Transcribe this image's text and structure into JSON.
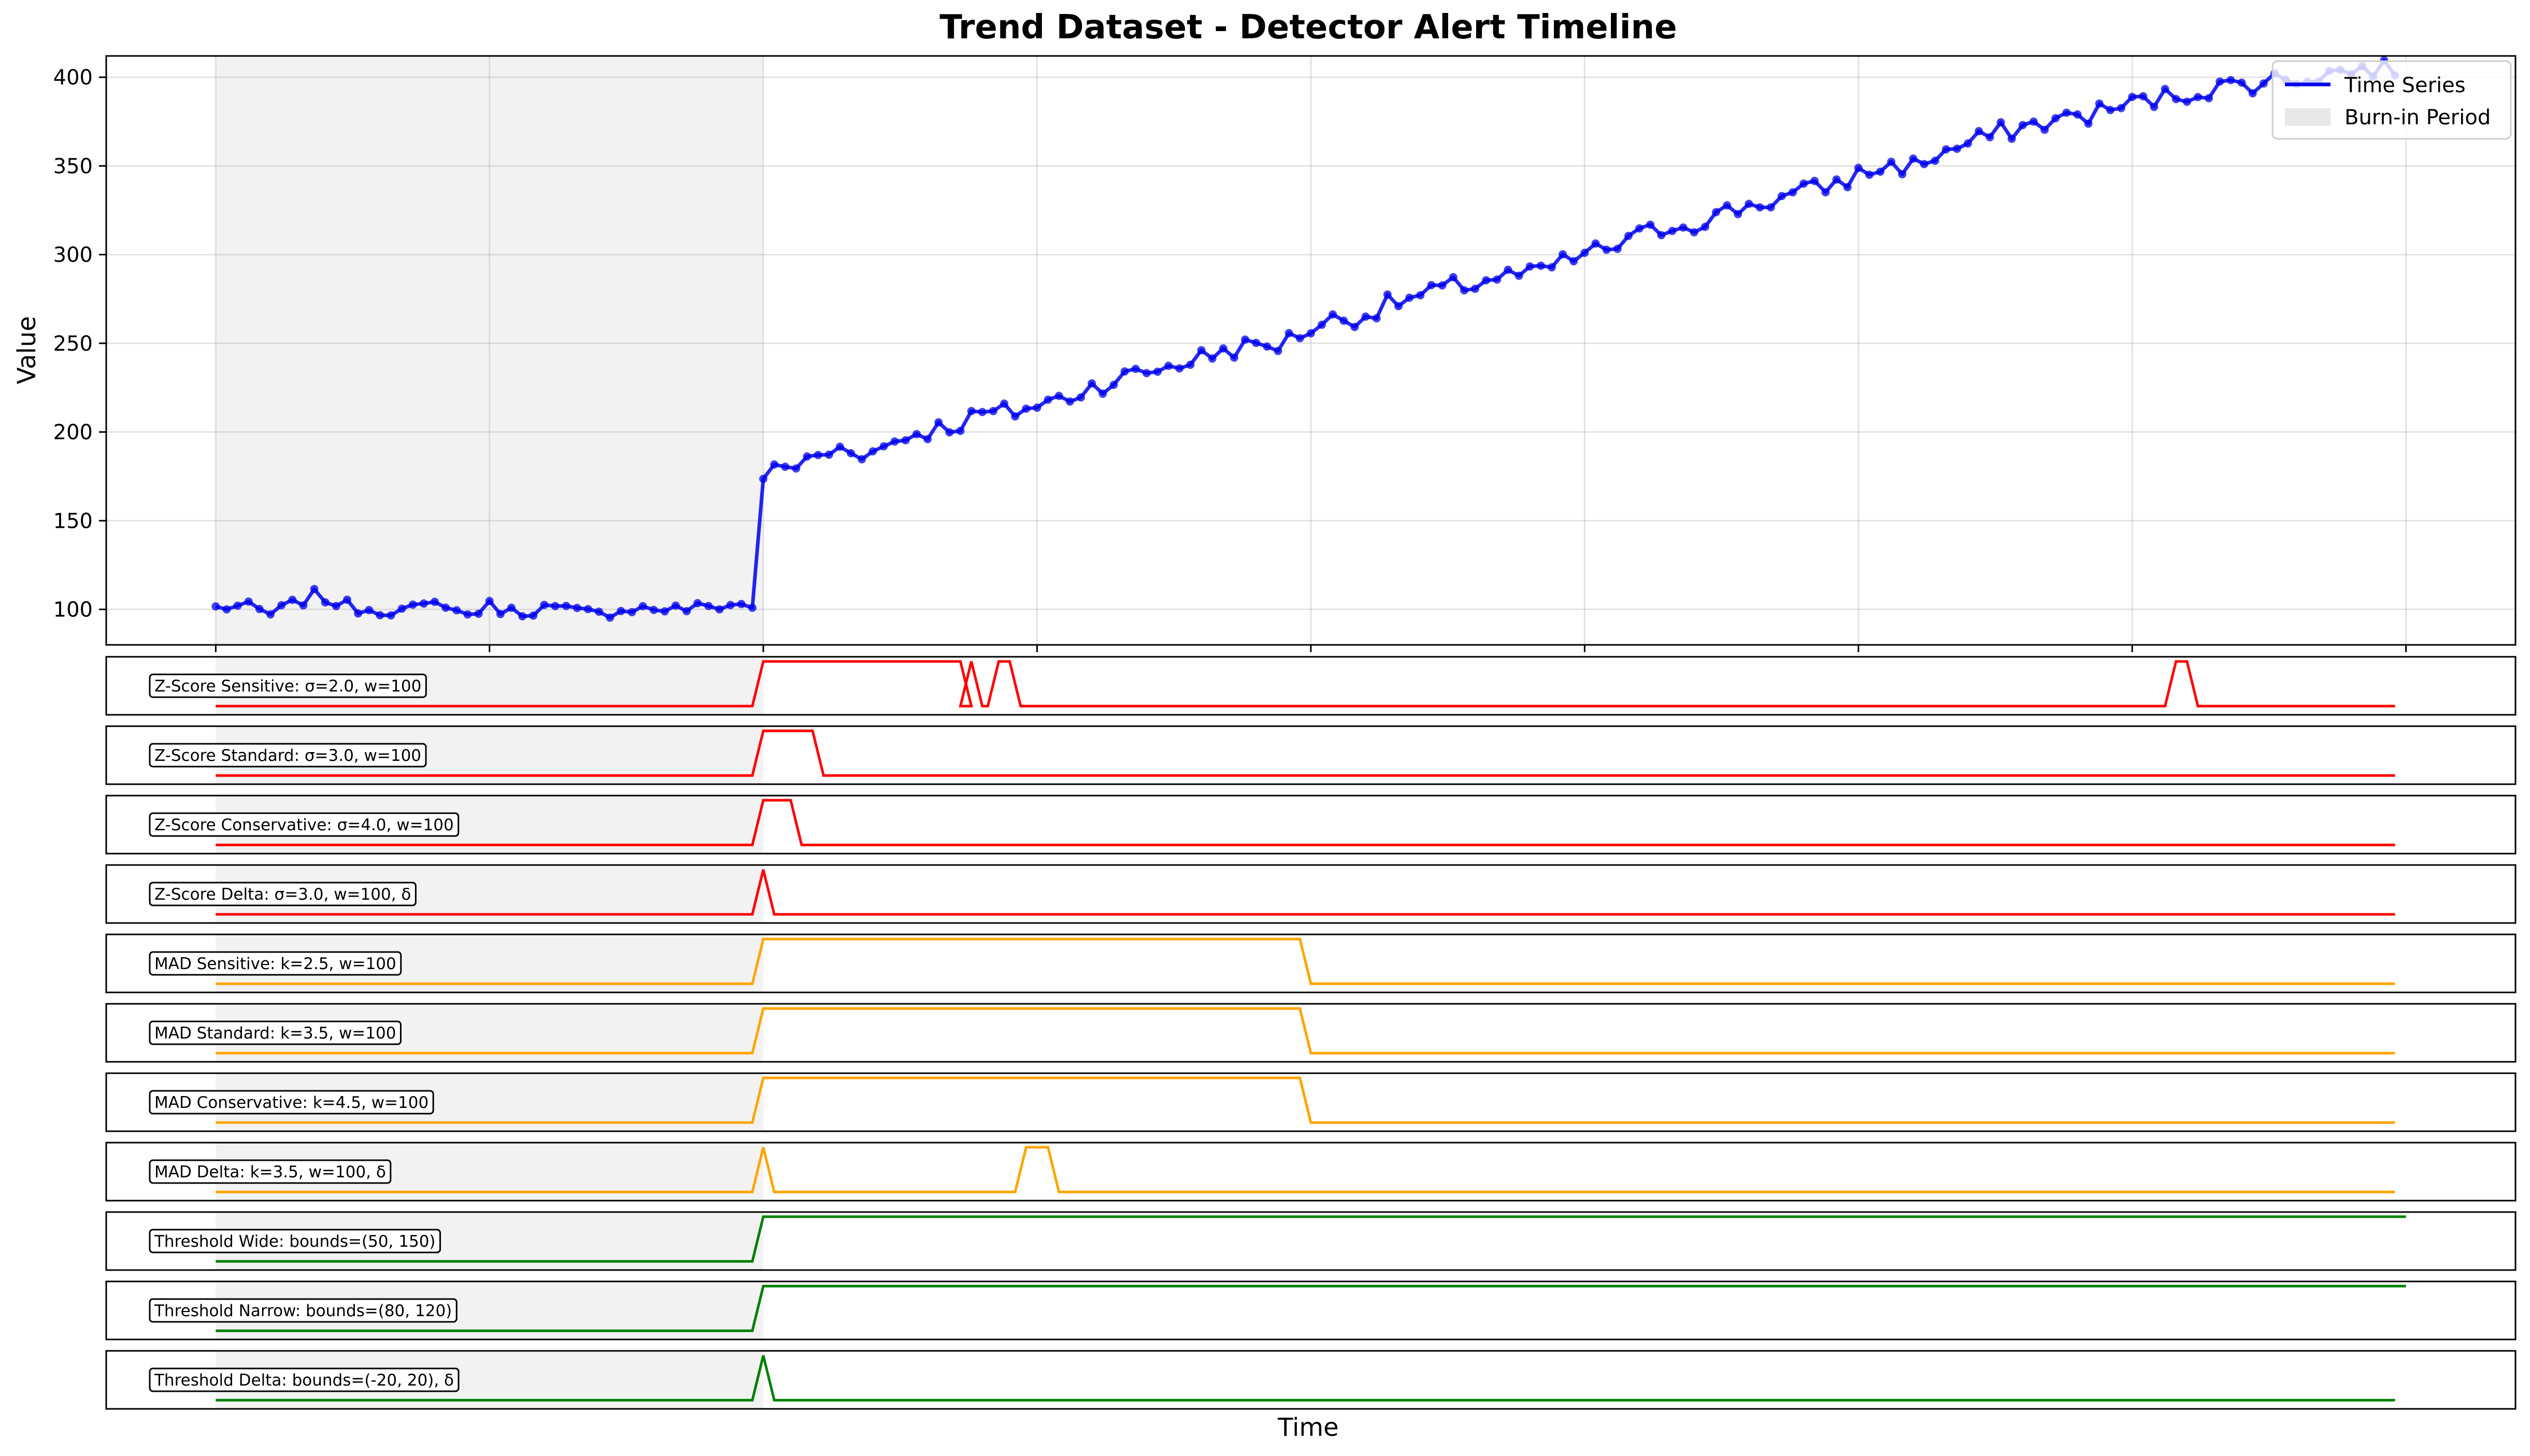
{
  "chart_data": {
    "type": "line",
    "title": "Trend Dataset - Detector Alert Timeline",
    "xlabel": "Time",
    "ylabel": "Value",
    "xlim": [
      -20,
      420
    ],
    "ylim": [
      80,
      412
    ],
    "yticks": [
      100,
      150,
      200,
      250,
      300,
      350,
      400
    ],
    "xgrid": [
      0,
      50,
      100,
      150,
      200,
      250,
      300,
      350,
      400
    ],
    "grid": true,
    "legend_position": "top-right",
    "legend": [
      "Time Series",
      "Burn-in Period"
    ],
    "burn_in": {
      "label": "Burn-in Period",
      "start": 0,
      "end": 100
    },
    "time_series": {
      "name": "Time Series",
      "color": "#0000ee",
      "anchors": [
        [
          0,
          101
        ],
        [
          5,
          102
        ],
        [
          10,
          97
        ],
        [
          18,
          108
        ],
        [
          25,
          101
        ],
        [
          35,
          99
        ],
        [
          42,
          104
        ],
        [
          45,
          96
        ],
        [
          50,
          102
        ],
        [
          55,
          98
        ],
        [
          60,
          101
        ],
        [
          70,
          97
        ],
        [
          75,
          101
        ],
        [
          85,
          100
        ],
        [
          95,
          103
        ],
        [
          99,
          101
        ],
        [
          100,
          176
        ],
        [
          105,
          180
        ],
        [
          110,
          186
        ],
        [
          115,
          192
        ],
        [
          120,
          188
        ],
        [
          125,
          197
        ],
        [
          130,
          201
        ],
        [
          135,
          204
        ],
        [
          140,
          210
        ],
        [
          145,
          211
        ],
        [
          150,
          215
        ],
        [
          155,
          219
        ],
        [
          160,
          226
        ],
        [
          165,
          230
        ],
        [
          170,
          234
        ],
        [
          175,
          238
        ],
        [
          180,
          242
        ],
        [
          185,
          247
        ],
        [
          190,
          248
        ],
        [
          195,
          250
        ],
        [
          200,
          259
        ],
        [
          205,
          264
        ],
        [
          210,
          266
        ],
        [
          215,
          273
        ],
        [
          220,
          276
        ],
        [
          225,
          281
        ],
        [
          230,
          284
        ],
        [
          235,
          288
        ],
        [
          240,
          288
        ],
        [
          245,
          294
        ],
        [
          250,
          300
        ],
        [
          255,
          304
        ],
        [
          260,
          310
        ],
        [
          265,
          316
        ],
        [
          270,
          318
        ],
        [
          275,
          323
        ],
        [
          280,
          328
        ],
        [
          285,
          331
        ],
        [
          290,
          335
        ],
        [
          295,
          339
        ],
        [
          300,
          345
        ],
        [
          305,
          350
        ],
        [
          310,
          350
        ],
        [
          315,
          357
        ],
        [
          320,
          362
        ],
        [
          325,
          368
        ],
        [
          330,
          372
        ],
        [
          335,
          375
        ],
        [
          340,
          378
        ],
        [
          345,
          381
        ],
        [
          350,
          385
        ],
        [
          355,
          388
        ],
        [
          360,
          391
        ],
        [
          365,
          394
        ],
        [
          370,
          396
        ],
        [
          375,
          398
        ],
        [
          380,
          400
        ],
        [
          385,
          402
        ],
        [
          390,
          404
        ],
        [
          395,
          405
        ],
        [
          399,
          406
        ]
      ]
    },
    "detectors": [
      {
        "name": "Z-Score Sensitive: σ=2.0, w=100",
        "color": "#ff0000",
        "alerts": [
          [
            100,
            136
          ],
          [
            138,
            139
          ],
          [
            143,
            145
          ],
          [
            358,
            360
          ]
        ]
      },
      {
        "name": "Z-Score Standard: σ=3.0, w=100",
        "color": "#ff0000",
        "alerts": [
          [
            100,
            109
          ]
        ]
      },
      {
        "name": "Z-Score Conservative: σ=4.0, w=100",
        "color": "#ff0000",
        "alerts": [
          [
            100,
            105
          ]
        ]
      },
      {
        "name": "Z-Score Delta: σ=3.0, w=100, δ",
        "color": "#ff0000",
        "alerts": [
          [
            100,
            101
          ]
        ]
      },
      {
        "name": "MAD Sensitive: k=2.5, w=100",
        "color": "#ffa500",
        "alerts": [
          [
            100,
            198
          ]
        ]
      },
      {
        "name": "MAD Standard: k=3.5, w=100",
        "color": "#ffa500",
        "alerts": [
          [
            100,
            198
          ]
        ]
      },
      {
        "name": "MAD Conservative: k=4.5, w=100",
        "color": "#ffa500",
        "alerts": [
          [
            100,
            198
          ]
        ]
      },
      {
        "name": "MAD Delta: k=3.5, w=100, δ",
        "color": "#ffa500",
        "alerts": [
          [
            100,
            101
          ],
          [
            148,
            152
          ]
        ]
      },
      {
        "name": "Threshold Wide: bounds=(50, 150)",
        "color": "#008000",
        "alerts": [
          [
            100,
            400
          ]
        ]
      },
      {
        "name": "Threshold Narrow: bounds=(80, 120)",
        "color": "#008000",
        "alerts": [
          [
            100,
            400
          ]
        ]
      },
      {
        "name": "Threshold Delta: bounds=(-20, 20), δ",
        "color": "#008000",
        "alerts": [
          [
            100,
            101
          ]
        ]
      }
    ]
  }
}
